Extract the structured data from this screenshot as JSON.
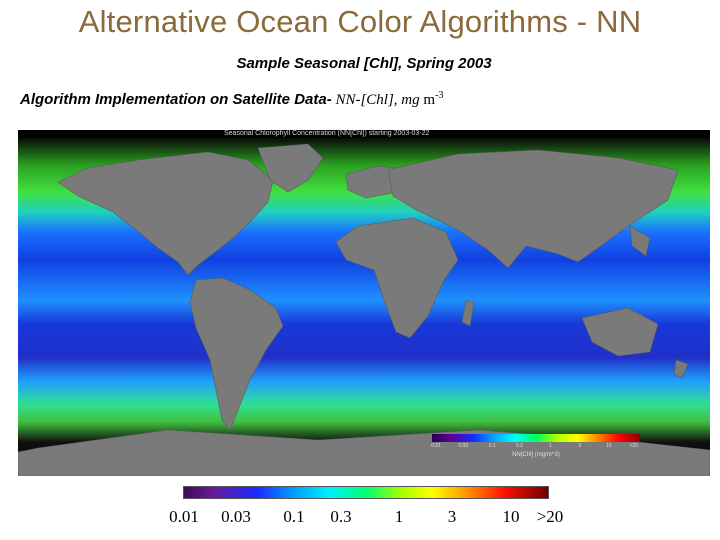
{
  "title": "Alternative Ocean Color Algorithms - NN",
  "subtitle": "Sample Seasonal [Chl], Spring 2003",
  "implementation": {
    "prefix": "Algorithm Implementation on Satellite Data-",
    "product": " NN-[Chl], mg",
    "unit": " m",
    "unit_exp": "-3"
  },
  "map": {
    "title": "Seasonal Chlorophyll Concentration (NN[Chl]) starting 2003-03-22",
    "colorbar_ticks": [
      "0.01",
      "0.03",
      "0.1",
      "0.3",
      "1",
      "3",
      "10",
      ">20"
    ],
    "colorbar_label": "NN[Chl] (mg/m^3)"
  },
  "colorbar": {
    "ticks": [
      "0.01",
      "0.03",
      "0.1",
      "0.3",
      "1",
      "3",
      "10",
      ">20"
    ]
  }
}
